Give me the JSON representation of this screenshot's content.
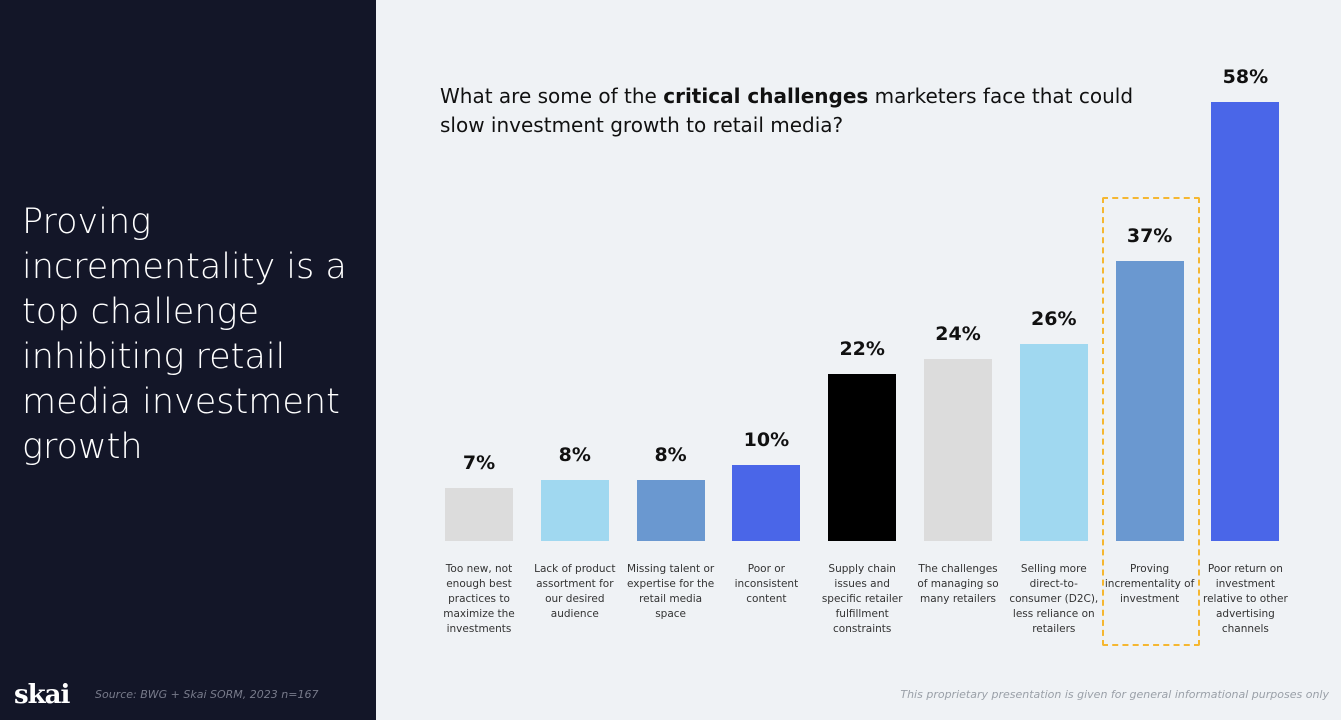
{
  "headline": "Proving incrementality is a top challenge inhibiting retail media investment growth",
  "logo": "skai",
  "source": "Source: BWG + Skai SORM, 2023  n=167",
  "disclaimer": "This proprietary presentation is given for general informational purposes only",
  "chart_data": {
    "type": "bar",
    "title_parts": {
      "pre": "What are some of the ",
      "bold": "critical challenges",
      "post": " marketers face that could slow investment growth to retail media?"
    },
    "ylim": [
      0,
      58
    ],
    "grid": false,
    "highlighted_category": "Proving incrementality of investment",
    "categories": [
      "Too new, not enough best practices to maximize the investments",
      "Lack of product assortment for our desired audience",
      "Missing talent or expertise for the retail media space",
      "Poor or inconsistent content",
      "Supply chain issues and specific retailer fulfillment constraints",
      "The challenges of managing so many retailers",
      "Selling more direct-to-consumer (D2C), less reliance on retailers",
      "Proving incrementality of investment",
      "Poor return on investment relative to other advertising channels"
    ],
    "values": [
      7,
      8,
      8,
      10,
      22,
      24,
      26,
      37,
      58
    ],
    "labels": [
      "7%",
      "8%",
      "8%",
      "10%",
      "22%",
      "24%",
      "26%",
      "37%",
      "58%"
    ],
    "colors": [
      "#dcdcdc",
      "#a0d8f0",
      "#6a98d0",
      "#4a66e8",
      "#000000",
      "#dcdcdc",
      "#a0d8f0",
      "#6a98d0",
      "#4a66e8"
    ],
    "highlight_color": "#f5b731"
  }
}
